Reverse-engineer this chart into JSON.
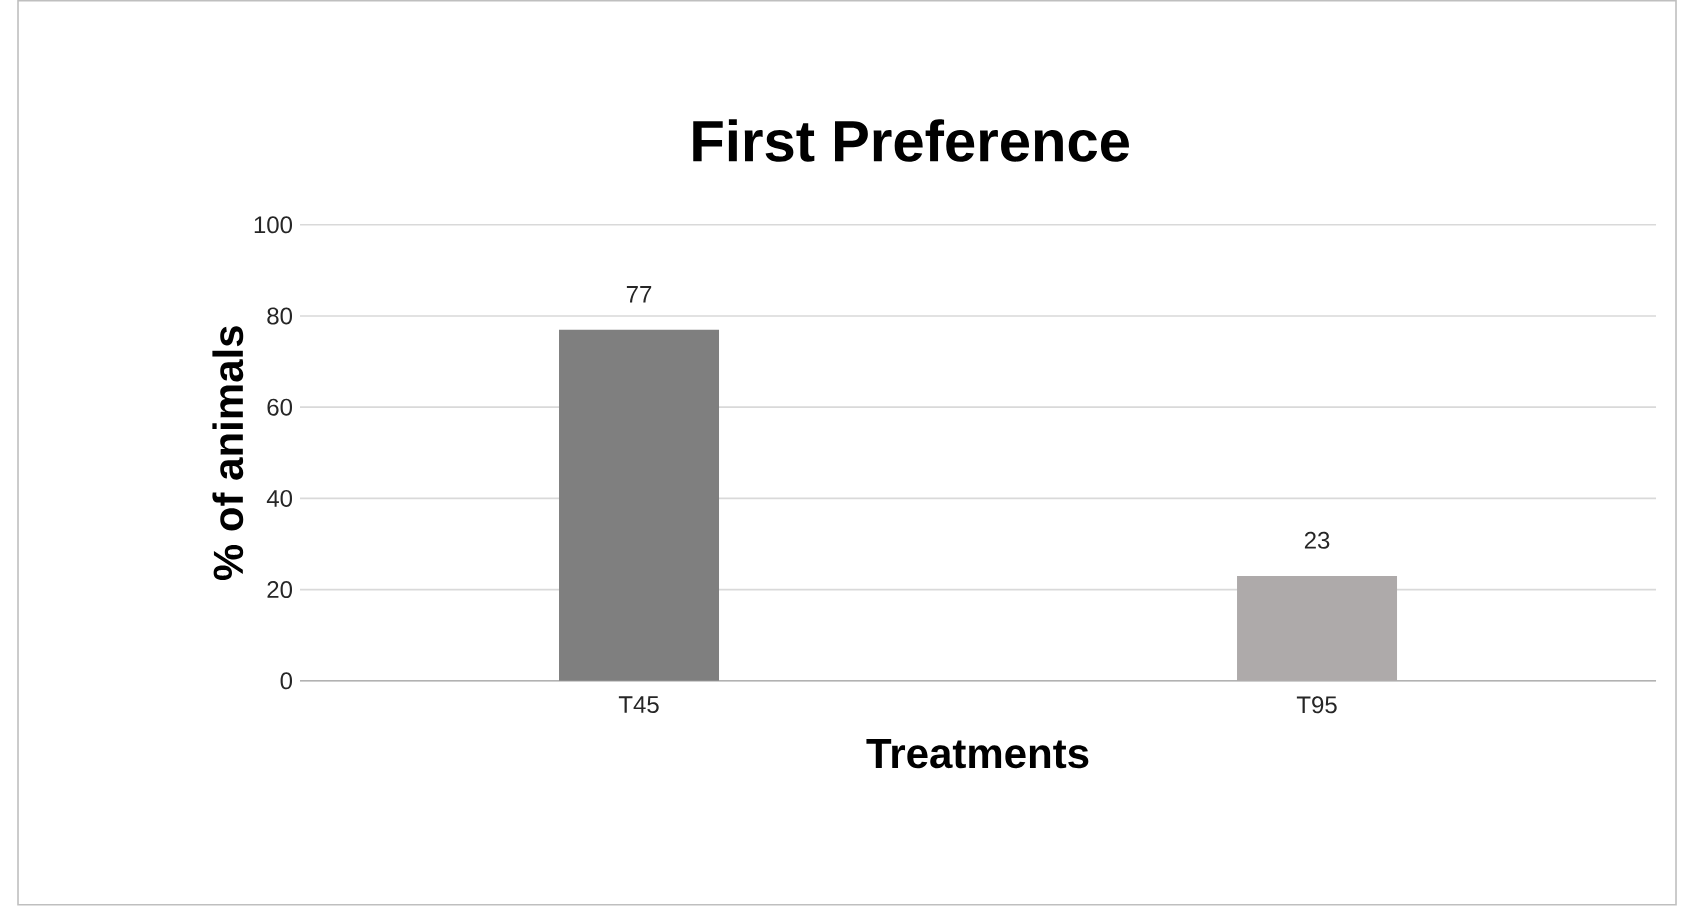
{
  "chart_data": {
    "type": "bar",
    "title": "First Preference",
    "xlabel": "Treatments",
    "ylabel": "% of animals",
    "categories": [
      "T45",
      "T95"
    ],
    "values": [
      77,
      23
    ],
    "colors": [
      "#7f7f7f",
      "#aeaaaa"
    ],
    "ylim": [
      0,
      100
    ],
    "yticks": [
      0,
      20,
      40,
      60,
      80,
      100
    ],
    "grid": "y",
    "data_labels": true
  }
}
